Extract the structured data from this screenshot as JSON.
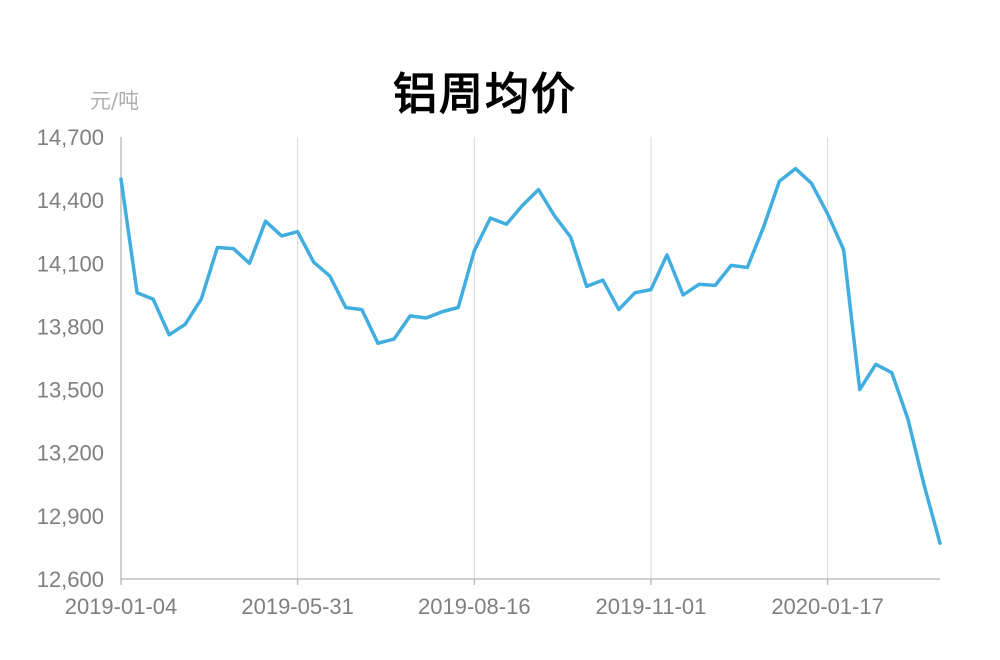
{
  "chart_data": {
    "type": "line",
    "title": "铝周均价",
    "unit": "元/吨",
    "ylim": [
      12600,
      14700
    ],
    "y_ticks": [
      "14,700",
      "14,400",
      "14,100",
      "13,800",
      "13,500",
      "13,200",
      "12,900",
      "12,600"
    ],
    "y_tick_values": [
      14700,
      14400,
      14100,
      13800,
      13500,
      13200,
      12900,
      12600
    ],
    "x_tick_labels": [
      "2019-01-04",
      "2019-05-31",
      "2019-08-16",
      "2019-11-01",
      "2020-01-17"
    ],
    "x_tick_indices": [
      0,
      11,
      22,
      33,
      44
    ],
    "grid": "vertical",
    "line_color": "#41AEDF",
    "series": [
      {
        "values": [
          14500,
          13960,
          13930,
          13760,
          13810,
          13930,
          14175,
          14170,
          14100,
          14300,
          14230,
          14250,
          14105,
          14040,
          13890,
          13880,
          13720,
          13740,
          13850,
          13840,
          13870,
          13890,
          14160,
          14315,
          14285,
          14375,
          14450,
          14325,
          14225,
          13990,
          14020,
          13880,
          13960,
          13975,
          14140,
          13950,
          14000,
          13995,
          14090,
          14080,
          14270,
          14490,
          14550,
          14480,
          14335,
          14165,
          13500,
          13620,
          13580,
          13360,
          13050,
          12770
        ]
      }
    ]
  }
}
